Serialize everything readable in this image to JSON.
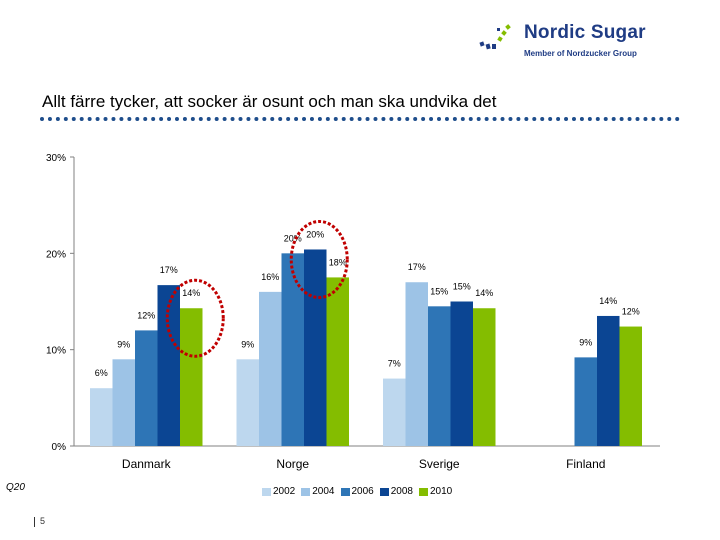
{
  "brand": {
    "name": "Nordic Sugar",
    "tagline": "Member of Nordzucker Group",
    "color": "#1f3c84"
  },
  "slide": {
    "title": "Allt färre tycker, att socker är osunt och man ska undvika det",
    "question": "Q20",
    "page": "5"
  },
  "chart_data": {
    "type": "bar",
    "categories": [
      "Danmark",
      "Norge",
      "Sverige",
      "Finland"
    ],
    "series": [
      {
        "name": "2002",
        "color": "#bdd7ee",
        "values": [
          6,
          9,
          7,
          null
        ],
        "labels": [
          "6%",
          "9%",
          "7%",
          ""
        ]
      },
      {
        "name": "2004",
        "color": "#9dc3e6",
        "values": [
          9,
          16,
          17,
          null
        ],
        "labels": [
          "9%",
          "16%",
          "17%",
          ""
        ]
      },
      {
        "name": "2006",
        "color": "#2e75b6",
        "values": [
          12,
          20,
          14.5,
          9.2
        ],
        "labels": [
          "12%",
          "20%",
          "15%",
          "9%"
        ]
      },
      {
        "name": "2008",
        "color": "#0b4593",
        "values": [
          16.7,
          20.4,
          15,
          13.5
        ],
        "labels": [
          "17%",
          "20%",
          "15%",
          "14%"
        ]
      },
      {
        "name": "2010",
        "color": "#84bd00",
        "values": [
          14.3,
          17.5,
          14.3,
          12.4
        ],
        "labels": [
          "14%",
          "18%",
          "14%",
          "12%"
        ]
      }
    ],
    "y_ticks": [
      "0%",
      "10%",
      "20%",
      "30%"
    ],
    "ylim": [
      0,
      30
    ],
    "highlights": [
      {
        "category": "Danmark",
        "series": "2010"
      },
      {
        "category": "Norge",
        "series": "2008"
      }
    ],
    "highlight_color": "#c00000",
    "legend_position": "bottom"
  }
}
